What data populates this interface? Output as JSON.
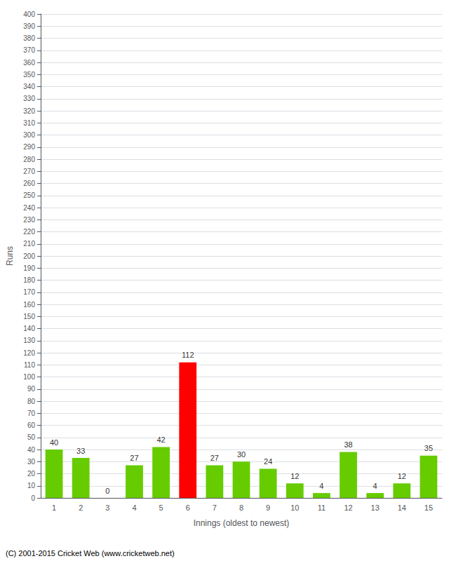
{
  "chart_data": {
    "type": "bar",
    "xlabel": "Innings (oldest to newest)",
    "ylabel": "Runs",
    "categories": [
      1,
      2,
      3,
      4,
      5,
      6,
      7,
      8,
      9,
      10,
      11,
      12,
      13,
      14,
      15
    ],
    "values": [
      40,
      33,
      0,
      27,
      42,
      112,
      27,
      30,
      24,
      12,
      4,
      38,
      4,
      12,
      35
    ],
    "colors": [
      "#66cc00",
      "#66cc00",
      "#66cc00",
      "#66cc00",
      "#66cc00",
      "#ff0000",
      "#66cc00",
      "#66cc00",
      "#66cc00",
      "#66cc00",
      "#66cc00",
      "#66cc00",
      "#66cc00",
      "#66cc00",
      "#66cc00"
    ],
    "ylim": [
      0,
      400
    ],
    "yticks": [
      0,
      10,
      20,
      30,
      40,
      50,
      60,
      70,
      80,
      90,
      100,
      110,
      120,
      130,
      140,
      150,
      160,
      170,
      180,
      190,
      200,
      210,
      220,
      230,
      240,
      250,
      260,
      270,
      280,
      290,
      300,
      310,
      320,
      330,
      340,
      350,
      360,
      370,
      380,
      390,
      400
    ],
    "grid": true,
    "data_labels": true,
    "annotations": [
      "(C) 2001-2015 Cricket Web (www.cricketweb.net)"
    ]
  }
}
